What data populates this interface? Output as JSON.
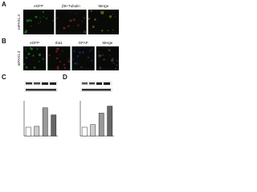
{
  "panels": [
    {
      "label": "A",
      "row_label": "mPAS1.3",
      "columns": [
        "eGFP",
        "βIII-Tubulin",
        "Merge"
      ]
    },
    {
      "label": "B",
      "row_label": "mPAS1.3",
      "columns": [
        "eGFP",
        "Iba1",
        "GFAP",
        "Merge"
      ]
    }
  ],
  "charts": [
    {
      "label": "C",
      "values": [
        1,
        1.1,
        3.2,
        2.4
      ],
      "ylim": [
        0,
        4
      ]
    },
    {
      "label": "D",
      "values": [
        1,
        1.3,
        2.6,
        3.4
      ],
      "ylim": [
        0,
        4
      ]
    }
  ]
}
